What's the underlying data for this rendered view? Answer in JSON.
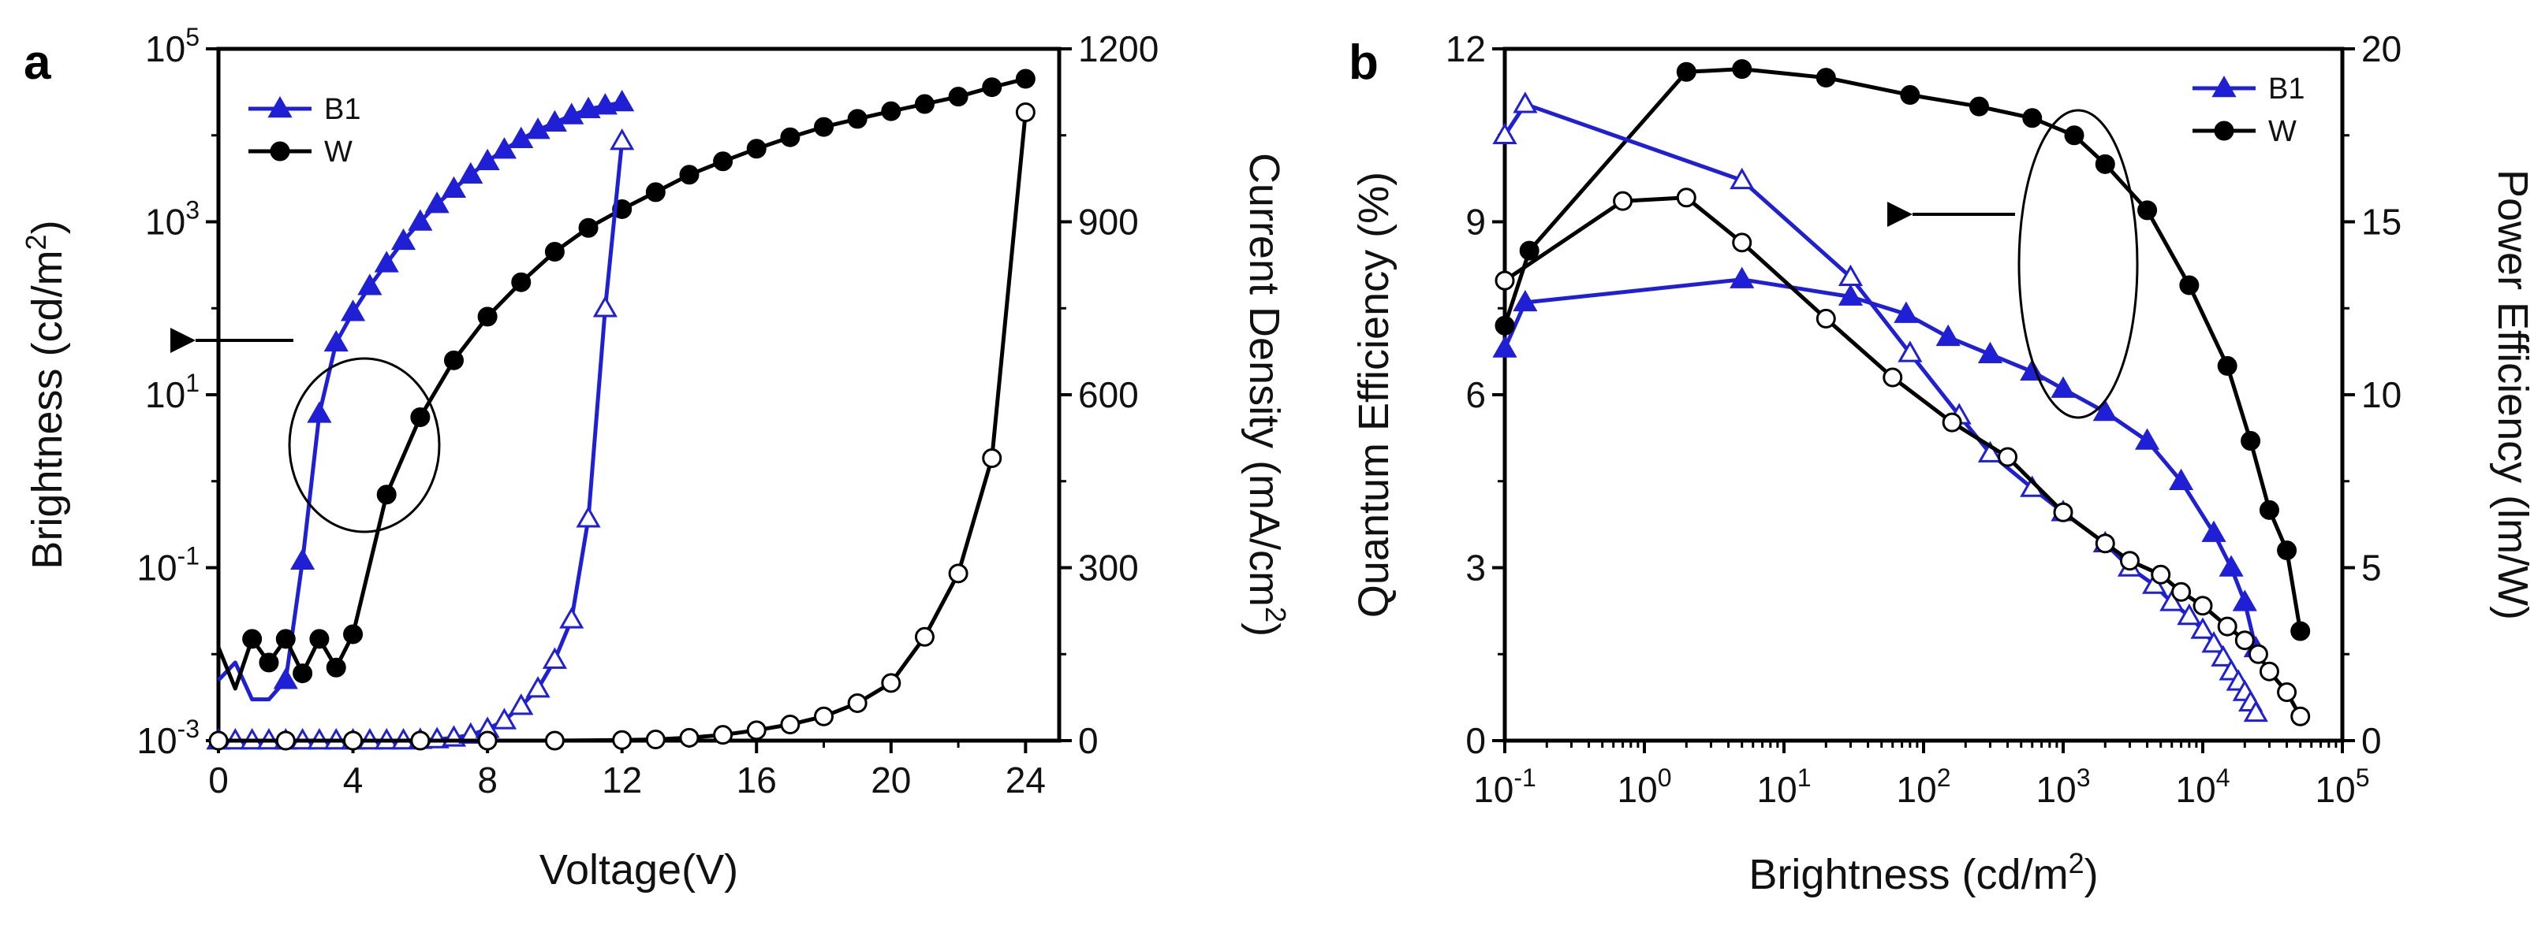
{
  "chart_data": [
    {
      "panel": "a",
      "type": "line",
      "xlabel": "Voltage(V)",
      "ylabel_left": "Brightness (cd/m²)",
      "ylabel_right": "Current Density (mA/cm²)",
      "xlim": [
        0,
        25
      ],
      "ylim_left_log10": [
        -3,
        5
      ],
      "ylim_right": [
        0,
        1200
      ],
      "x_ticks": [
        0,
        4,
        8,
        12,
        16,
        20,
        24
      ],
      "y_left_ticks": [
        {
          "exp": -3
        },
        {
          "exp": -1
        },
        {
          "exp": 1
        },
        {
          "exp": 3
        },
        {
          "exp": 5
        }
      ],
      "y_right_ticks": [
        0,
        300,
        600,
        900,
        1200
      ],
      "annotation": {
        "arrow_direction": "left",
        "target_axis": "left"
      },
      "legend": [
        {
          "name": "B1",
          "color": "#1f1fd6",
          "marker": "triangle"
        },
        {
          "name": "W",
          "color": "#000000",
          "marker": "circle"
        }
      ],
      "series": [
        {
          "name": "B1 brightness",
          "axis": "left",
          "color": "#1f1fd6",
          "marker": "triangle",
          "filled": true,
          "markers_from_x": 2,
          "x": [
            0,
            0.5,
            1,
            1.5,
            2,
            2.5,
            3,
            3.5,
            4,
            4.5,
            5,
            5.5,
            6,
            6.5,
            7,
            7.5,
            8,
            8.5,
            9,
            9.5,
            10,
            10.5,
            11,
            11.5,
            12
          ],
          "y": [
            0.005,
            0.008,
            0.003,
            0.003,
            0.005,
            0.12,
            6,
            40,
            90,
            180,
            330,
            600,
            1000,
            1600,
            2400,
            3500,
            5000,
            6800,
            9000,
            11500,
            14000,
            17000,
            20000,
            22000,
            24000
          ]
        },
        {
          "name": "W brightness",
          "axis": "left",
          "color": "#000000",
          "marker": "circle",
          "filled": true,
          "markers_from_x": 1,
          "x": [
            0,
            0.5,
            1,
            1.5,
            2,
            2.5,
            3,
            3.5,
            4,
            5,
            6,
            7,
            8,
            9,
            10,
            11,
            12,
            13,
            14,
            15,
            16,
            17,
            18,
            19,
            20,
            21,
            22,
            23,
            24
          ],
          "y": [
            0.012,
            0.004,
            0.015,
            0.008,
            0.015,
            0.006,
            0.015,
            0.007,
            0.017,
            0.7,
            5.5,
            25,
            80,
            200,
            450,
            850,
            1400,
            2200,
            3500,
            5000,
            7000,
            9500,
            12500,
            15500,
            19000,
            23000,
            28000,
            36000,
            45000
          ]
        },
        {
          "name": "B1 current density",
          "axis": "right",
          "color": "#1f1fd6",
          "marker": "triangle",
          "filled": false,
          "x": [
            0,
            0.5,
            1,
            1.5,
            2,
            2.5,
            3,
            3.5,
            4,
            4.5,
            5,
            5.5,
            6,
            6.5,
            7,
            7.5,
            8,
            8.5,
            9,
            9.5,
            10,
            10.5,
            11,
            11.5,
            12
          ],
          "y": [
            0,
            0,
            0,
            0,
            0,
            0,
            0,
            0,
            0,
            0,
            0,
            0,
            1,
            2,
            5,
            10,
            20,
            35,
            60,
            90,
            140,
            210,
            385,
            750,
            1040
          ]
        },
        {
          "name": "W current density",
          "axis": "right",
          "color": "#000000",
          "marker": "circle",
          "filled": false,
          "x": [
            0,
            2,
            4,
            6,
            8,
            10,
            12,
            13,
            14,
            15,
            16,
            17,
            18,
            19,
            20,
            21,
            22,
            23,
            24
          ],
          "y": [
            0,
            0,
            0,
            0,
            0,
            0,
            1,
            2,
            5,
            10,
            18,
            28,
            42,
            65,
            100,
            180,
            290,
            490,
            1090
          ]
        }
      ]
    },
    {
      "panel": "b",
      "type": "line",
      "xlabel": "Brightness (cd/m²)",
      "ylabel_left": "Quantum Efficiency  (%)",
      "ylabel_right": "Power Efficiency (lm/W)",
      "xlim_log10": [
        -1,
        5
      ],
      "ylim_left": [
        0,
        12
      ],
      "ylim_right": [
        0,
        20
      ],
      "x_ticks": [
        {
          "exp": -1
        },
        {
          "exp": 0
        },
        {
          "exp": 1
        },
        {
          "exp": 2
        },
        {
          "exp": 3
        },
        {
          "exp": 4
        },
        {
          "exp": 5
        }
      ],
      "y_left_ticks": [
        0,
        3,
        6,
        9,
        12
      ],
      "y_right_ticks": [
        0,
        5,
        10,
        15,
        20
      ],
      "annotation": {
        "arrow_direction": "left",
        "target_axis": "left"
      },
      "legend": [
        {
          "name": "B1",
          "color": "#1f1fd6",
          "marker": "triangle"
        },
        {
          "name": "W",
          "color": "#000000",
          "marker": "circle"
        }
      ],
      "series": [
        {
          "name": "B1 quantum efficiency",
          "axis": "left",
          "color": "#1f1fd6",
          "marker": "triangle",
          "filled": true,
          "x": [
            0.1,
            0.14,
            5,
            30,
            75,
            150,
            300,
            600,
            1000,
            2000,
            4000,
            7000,
            12000,
            16000,
            20000,
            24000
          ],
          "y": [
            6.8,
            7.6,
            8.0,
            7.7,
            7.4,
            7.0,
            6.7,
            6.4,
            6.1,
            5.7,
            5.2,
            4.5,
            3.6,
            3.0,
            2.4,
            1.6
          ]
        },
        {
          "name": "W quantum efficiency",
          "axis": "left",
          "color": "#000000",
          "marker": "circle",
          "filled": true,
          "x": [
            0.1,
            0.15,
            2,
            5,
            20,
            80,
            250,
            600,
            1200,
            2000,
            4000,
            8000,
            15000,
            22000,
            30000,
            40000,
            50000
          ],
          "y": [
            7.2,
            8.5,
            11.6,
            11.65,
            11.5,
            11.2,
            11.0,
            10.8,
            10.5,
            10.0,
            9.2,
            7.9,
            6.5,
            5.2,
            4.0,
            3.3,
            1.9
          ]
        },
        {
          "name": "B1 power efficiency",
          "axis": "right",
          "color": "#1f1fd6",
          "marker": "triangle",
          "filled": false,
          "x": [
            0.1,
            0.14,
            5,
            30,
            80,
            180,
            300,
            600,
            1000,
            2000,
            3000,
            4500,
            6000,
            8000,
            10000,
            12000,
            14000,
            16000,
            18000,
            20000,
            22000,
            24000
          ],
          "y": [
            17.5,
            18.4,
            16.2,
            13.4,
            11.2,
            9.4,
            8.3,
            7.3,
            6.6,
            5.7,
            5.0,
            4.5,
            4.0,
            3.6,
            3.2,
            2.8,
            2.4,
            2.0,
            1.7,
            1.4,
            1.1,
            0.8
          ]
        },
        {
          "name": "W power efficiency",
          "axis": "right",
          "color": "#000000",
          "marker": "circle",
          "filled": false,
          "x": [
            0.1,
            0.7,
            2,
            5,
            20,
            60,
            160,
            400,
            1000,
            2000,
            3000,
            5000,
            7000,
            10000,
            15000,
            20000,
            25000,
            30000,
            40000,
            50000
          ],
          "y": [
            13.3,
            15.6,
            15.7,
            14.4,
            12.2,
            10.5,
            9.2,
            8.2,
            6.6,
            5.7,
            5.2,
            4.8,
            4.3,
            3.9,
            3.3,
            2.9,
            2.5,
            2.0,
            1.4,
            0.7
          ]
        }
      ]
    }
  ]
}
